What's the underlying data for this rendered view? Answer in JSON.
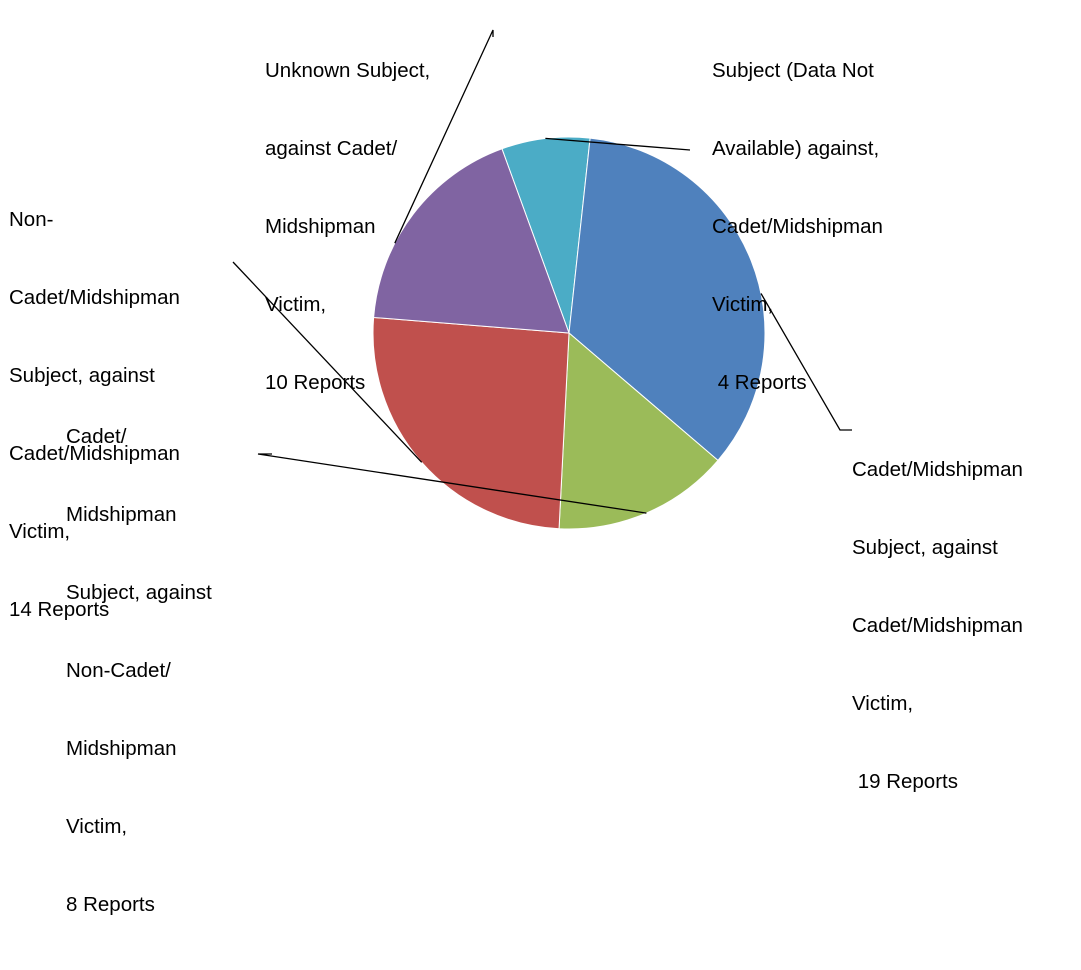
{
  "chart_data": {
    "type": "pie",
    "start_angle_deg": 340,
    "direction": "clockwise",
    "slices": [
      {
        "name": "Subject (Data Not Available) against, Cadet/Midshipman Victim",
        "value": 4,
        "color": "#4BACC6",
        "label_lines": [
          "Subject (Data Not",
          "Available) against,",
          "Cadet/Midshipman",
          "Victim,",
          " 4 Reports"
        ]
      },
      {
        "name": "Cadet/Midshipman Subject, against Cadet/Midshipman Victim",
        "value": 19,
        "color": "#4F81BD",
        "label_lines": [
          "Cadet/Midshipman",
          "Subject, against",
          "Cadet/Midshipman",
          "Victim,",
          " 19 Reports"
        ]
      },
      {
        "name": "Cadet/ Midshipman Subject, against Non-Cadet/ Midshipman Victim",
        "value": 8,
        "color": "#9BBB59",
        "label_lines": [
          "Cadet/",
          "Midshipman",
          "Subject, against",
          "Non-Cadet/",
          "Midshipman",
          "Victim,",
          "8 Reports"
        ]
      },
      {
        "name": "Non-Cadet/Midshipman Subject, against Cadet/Midshipman Victim",
        "value": 14,
        "color": "#C0504D",
        "label_lines": [
          "Non-",
          "Cadet/Midshipman",
          "Subject, against",
          "Cadet/Midshipman",
          "Victim,",
          "14 Reports"
        ]
      },
      {
        "name": "Unknown Subject, against Cadet/ Midshipman Victim",
        "value": 10,
        "color": "#8064A2",
        "label_lines": [
          "Unknown Subject,",
          "against Cadet/",
          "Midshipman",
          "Victim,",
          "10 Reports"
        ]
      }
    ]
  }
}
